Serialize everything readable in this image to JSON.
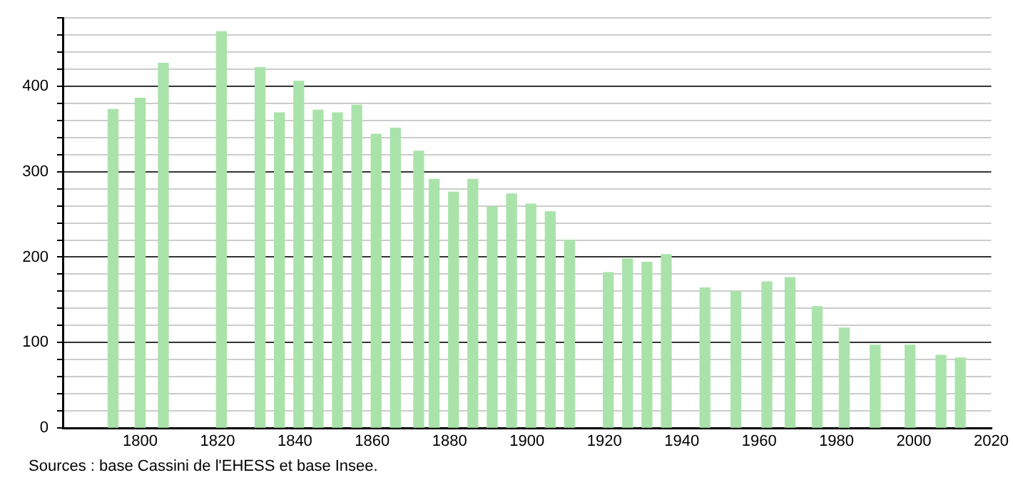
{
  "chart_data": {
    "type": "bar",
    "x": [
      1793,
      1800,
      1806,
      1821,
      1831,
      1836,
      1841,
      1846,
      1851,
      1856,
      1861,
      1866,
      1872,
      1876,
      1881,
      1886,
      1891,
      1896,
      1901,
      1906,
      1911,
      1921,
      1926,
      1931,
      1936,
      1946,
      1954,
      1962,
      1968,
      1975,
      1982,
      1990,
      1999,
      2007,
      2012
    ],
    "values": [
      373,
      386,
      427,
      464,
      422,
      369,
      406,
      372,
      369,
      378,
      344,
      351,
      324,
      291,
      276,
      291,
      259,
      274,
      262,
      253,
      220,
      182,
      198,
      194,
      203,
      164,
      160,
      171,
      176,
      142,
      117,
      97,
      97,
      85,
      82
    ],
    "color": "#aae3aa",
    "xlim": [
      1780,
      2020
    ],
    "xticks": [
      1800,
      1820,
      1840,
      1860,
      1880,
      1900,
      1920,
      1940,
      1960,
      1980,
      2000,
      2020
    ],
    "ylim": [
      0,
      480
    ],
    "yticks": [
      0,
      {
        "value": 20,
        "label": null
      },
      {
        "value": 40,
        "label": null
      },
      {
        "value": 60,
        "label": null
      },
      {
        "value": 80,
        "label": null
      },
      100,
      {
        "value": 120,
        "label": null
      },
      {
        "value": 140,
        "label": null
      },
      {
        "value": 160,
        "label": null
      },
      {
        "value": 180,
        "label": null
      },
      200,
      {
        "value": 220,
        "label": null
      },
      {
        "value": 240,
        "label": null
      },
      {
        "value": 260,
        "label": null
      },
      {
        "value": 280,
        "label": null
      },
      300,
      {
        "value": 320,
        "label": null
      },
      {
        "value": 340,
        "label": null
      },
      {
        "value": 360,
        "label": null
      },
      {
        "value": 380,
        "label": null
      },
      400,
      {
        "value": 420,
        "label": null
      },
      {
        "value": 440,
        "label": null
      },
      {
        "value": 460,
        "label": null
      },
      {
        "value": 480,
        "label": null
      }
    ],
    "grid": "y",
    "annotations": [
      "Sources : base Cassini de l'EHESS et base Insee."
    ]
  }
}
